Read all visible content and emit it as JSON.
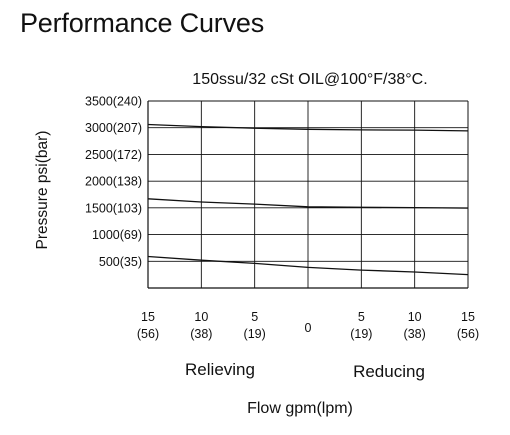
{
  "page": {
    "title": "Performance Curves"
  },
  "chart_data": {
    "type": "line",
    "title": "",
    "subtitle": "150ssu/32 cSt OIL@100°F/38°C.",
    "xlabel": "Flow gpm(lpm)",
    "ylabel": "Pressure psi(bar)",
    "xlim": [
      -15,
      15
    ],
    "ylim": [
      0,
      3500
    ],
    "x_tick_labels": [
      {
        "value": -15,
        "gpm": "15",
        "lpm": "(56)"
      },
      {
        "value": -10,
        "gpm": "10",
        "lpm": "(38)"
      },
      {
        "value": -5,
        "gpm": "5",
        "lpm": "(19)"
      },
      {
        "value": 0,
        "gpm": "0",
        "lpm": ""
      },
      {
        "value": 5,
        "gpm": "5",
        "lpm": "(19)"
      },
      {
        "value": 10,
        "gpm": "10",
        "lpm": "(38)"
      },
      {
        "value": 15,
        "gpm": "15",
        "lpm": "(56)"
      }
    ],
    "y_tick_labels": [
      {
        "value": 3500,
        "label": "3500(240)"
      },
      {
        "value": 3000,
        "label": "3000(207)"
      },
      {
        "value": 2500,
        "label": "2500(172)"
      },
      {
        "value": 2000,
        "label": "2000(138)"
      },
      {
        "value": 1500,
        "label": "1500(103)"
      },
      {
        "value": 1000,
        "label": "1000(69)"
      },
      {
        "value": 500,
        "label": "500(35)"
      }
    ],
    "region_labels": {
      "left": "Relieving",
      "right": "Reducing"
    },
    "grid": true,
    "series": [
      {
        "points": [
          [
            -15,
            3060
          ],
          [
            -10,
            3020
          ],
          [
            -5,
            2990
          ],
          [
            0,
            2970
          ],
          [
            5,
            2960
          ],
          [
            10,
            2955
          ],
          [
            15,
            2940
          ]
        ]
      },
      {
        "points": [
          [
            -15,
            1670
          ],
          [
            -10,
            1610
          ],
          [
            -5,
            1570
          ],
          [
            0,
            1520
          ],
          [
            5,
            1510
          ],
          [
            10,
            1505
          ],
          [
            15,
            1495
          ]
        ]
      },
      {
        "points": [
          [
            -15,
            590
          ],
          [
            -10,
            520
          ],
          [
            -5,
            460
          ],
          [
            0,
            385
          ],
          [
            5,
            335
          ],
          [
            10,
            300
          ],
          [
            15,
            250
          ]
        ]
      }
    ],
    "colors": {
      "line": "#111111",
      "grid": "#111111",
      "axis": "#111111"
    }
  }
}
